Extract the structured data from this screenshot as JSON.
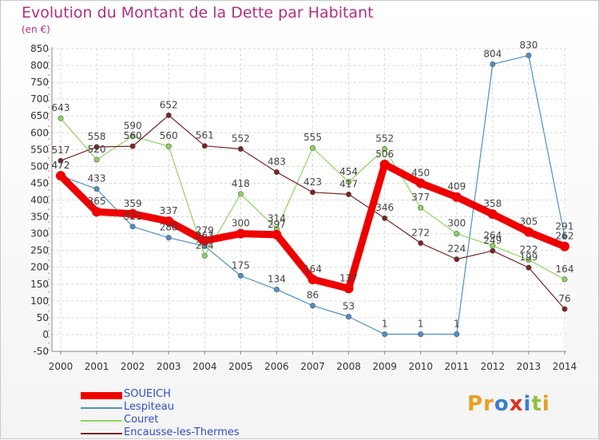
{
  "header": {
    "title": "Evolution du Montant de la Dette par Habitant",
    "unit": "(en €)"
  },
  "chart_data": {
    "type": "line",
    "x": [
      "2000",
      "2001",
      "2002",
      "2003",
      "2004",
      "2005",
      "2006",
      "2007",
      "2008",
      "2009",
      "2010",
      "2011",
      "2012",
      "2013",
      "2014"
    ],
    "ylim": [
      -50,
      850
    ],
    "yticks": [
      -50,
      0,
      50,
      100,
      150,
      200,
      250,
      300,
      350,
      400,
      450,
      500,
      550,
      600,
      650,
      700,
      750,
      800,
      850
    ],
    "grid": true,
    "legend_position": "bottom-left",
    "series": [
      {
        "name": "SOUEICH",
        "color": "#ee0000",
        "values": [
          472,
          365,
          359,
          337,
          279,
          300,
          297,
          164,
          137,
          506,
          450,
          409,
          358,
          305,
          262
        ]
      },
      {
        "name": "Lespiteau",
        "color": "#4f8fc6",
        "values": [
          472,
          433,
          321,
          288,
          263,
          175,
          134,
          86,
          53,
          1,
          1,
          1,
          804,
          830,
          291
        ]
      },
      {
        "name": "Couret",
        "color": "#8fd45f",
        "values": [
          643,
          520,
          590,
          560,
          234,
          418,
          314,
          555,
          454,
          552,
          377,
          300,
          264,
          222,
          164
        ]
      },
      {
        "name": "Encausse-les-Thermes",
        "color": "#7a2424",
        "values": [
          517,
          558,
          560,
          652,
          561,
          552,
          483,
          423,
          417,
          346,
          272,
          224,
          249,
          199,
          76
        ]
      }
    ]
  },
  "logo": {
    "text": "Proxiti"
  }
}
